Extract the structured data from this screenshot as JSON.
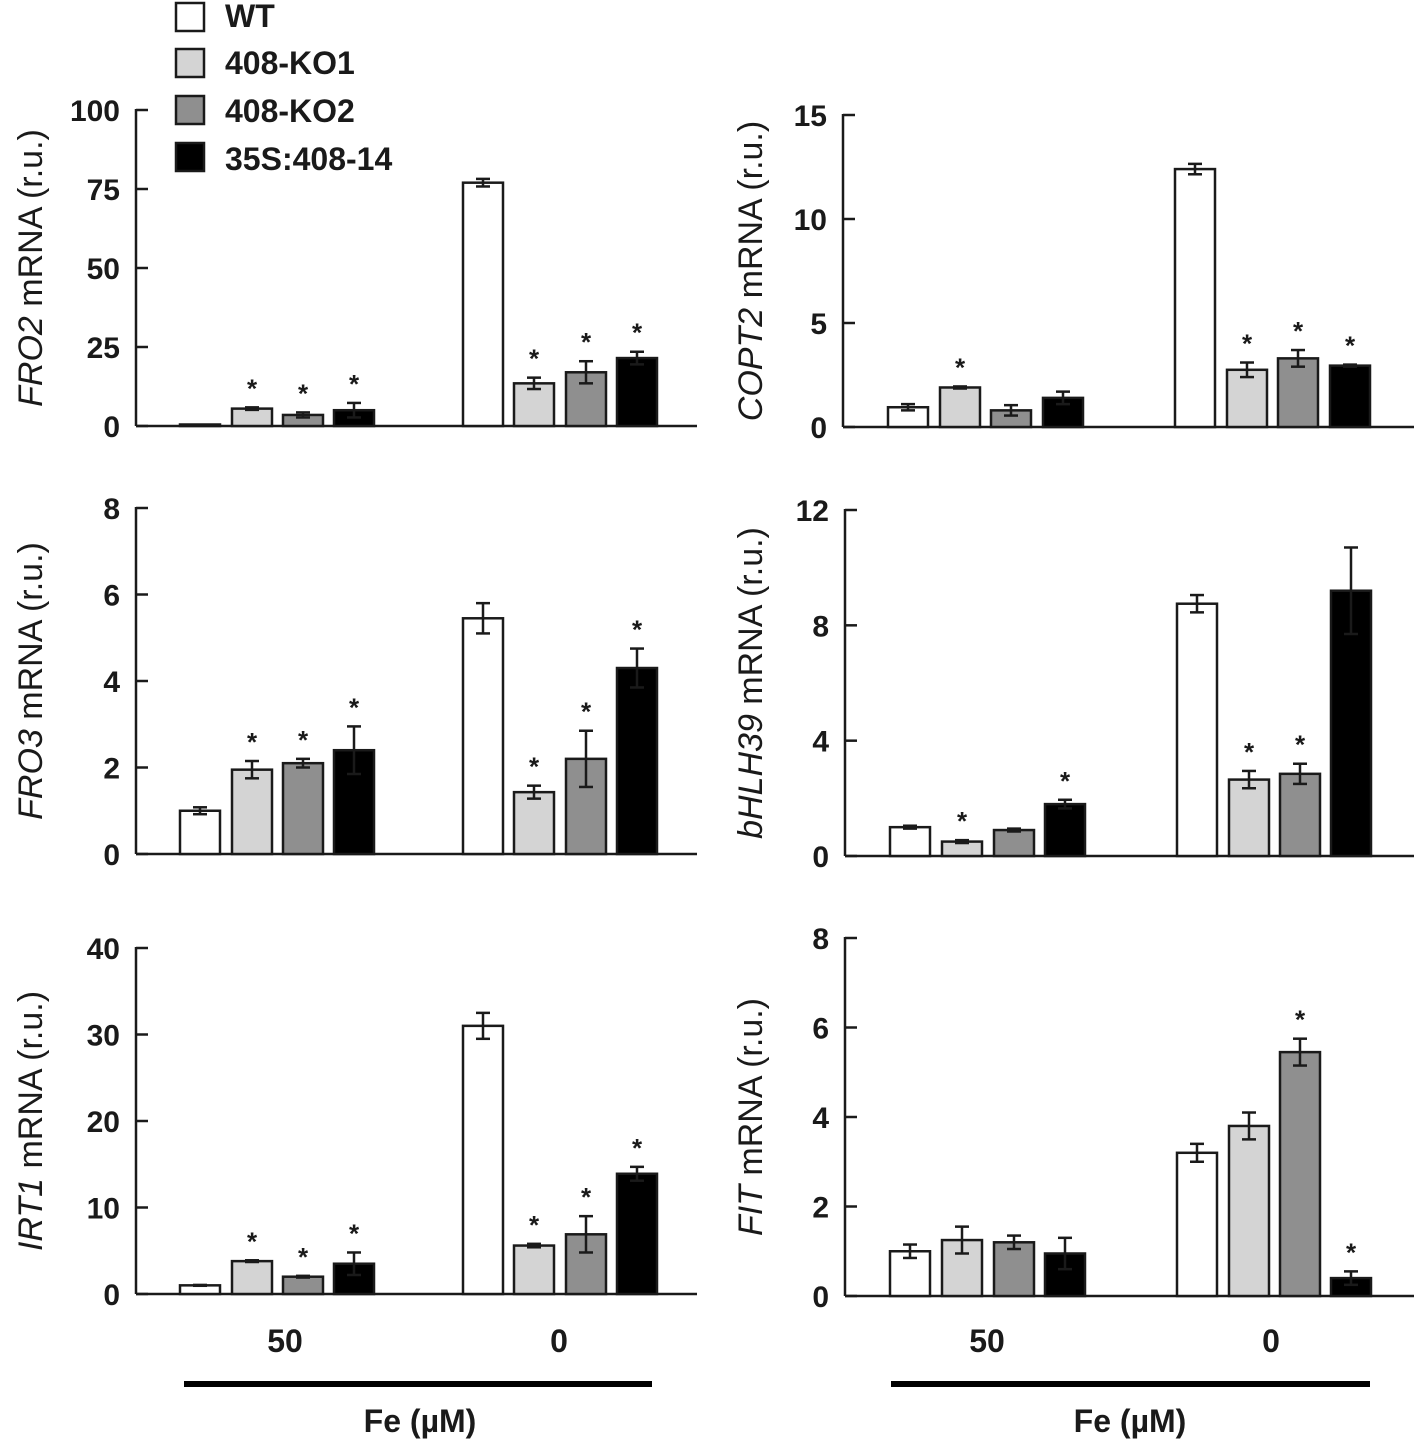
{
  "legend": [
    {
      "label": "WT",
      "color": "#ffffff"
    },
    {
      "label": "408-KO1",
      "color": "#d4d4d4"
    },
    {
      "label": "408-KO2",
      "color": "#8f8f8f"
    },
    {
      "label": "35S:408-14",
      "color": "#000000"
    }
  ],
  "x_axis": {
    "groups": [
      "50",
      "0"
    ],
    "label": "Fe (µM)"
  },
  "chart_data": [
    {
      "type": "bar",
      "gene": "FRO2",
      "ylabel_suffix": " mRNA (r.u.)",
      "categories": [
        "50",
        "0"
      ],
      "ylim": [
        0,
        100
      ],
      "yticks": [
        0,
        25,
        50,
        75,
        100
      ],
      "series": [
        {
          "name": "WT",
          "values": [
            0.3,
            77
          ],
          "errors": [
            0.1,
            1.2
          ],
          "significant": [
            false,
            false
          ]
        },
        {
          "name": "408-KO1",
          "values": [
            5.5,
            13.5
          ],
          "errors": [
            0.4,
            1.8
          ],
          "significant": [
            true,
            true
          ]
        },
        {
          "name": "408-KO2",
          "values": [
            3.5,
            17
          ],
          "errors": [
            0.8,
            3.5
          ],
          "significant": [
            true,
            true
          ]
        },
        {
          "name": "35S:408-14",
          "values": [
            5,
            21.5
          ],
          "errors": [
            2.3,
            2.0
          ],
          "significant": [
            true,
            true
          ]
        }
      ]
    },
    {
      "type": "bar",
      "gene": "COPT2",
      "ylabel_suffix": " mRNA (r.u.)",
      "categories": [
        "50",
        "0"
      ],
      "ylim": [
        0,
        15
      ],
      "yticks": [
        0,
        5,
        10,
        15
      ],
      "series": [
        {
          "name": "WT",
          "values": [
            0.95,
            12.4
          ],
          "errors": [
            0.15,
            0.25
          ],
          "significant": [
            false,
            false
          ]
        },
        {
          "name": "408-KO1",
          "values": [
            1.9,
            2.75
          ],
          "errors": [
            0.05,
            0.35
          ],
          "significant": [
            true,
            true
          ]
        },
        {
          "name": "408-KO2",
          "values": [
            0.8,
            3.3
          ],
          "errors": [
            0.25,
            0.4
          ],
          "significant": [
            false,
            true
          ]
        },
        {
          "name": "35S:408-14",
          "values": [
            1.4,
            2.95
          ],
          "errors": [
            0.3,
            0.05
          ],
          "significant": [
            false,
            true
          ]
        }
      ]
    },
    {
      "type": "bar",
      "gene": "FRO3",
      "ylabel_suffix": " mRNA (r.u.)",
      "categories": [
        "50",
        "0"
      ],
      "ylim": [
        0,
        8
      ],
      "yticks": [
        0,
        2,
        4,
        6,
        8
      ],
      "series": [
        {
          "name": "WT",
          "values": [
            1.0,
            5.45
          ],
          "errors": [
            0.08,
            0.35
          ],
          "significant": [
            false,
            false
          ]
        },
        {
          "name": "408-KO1",
          "values": [
            1.95,
            1.43
          ],
          "errors": [
            0.2,
            0.15
          ],
          "significant": [
            true,
            true
          ]
        },
        {
          "name": "408-KO2",
          "values": [
            2.1,
            2.2
          ],
          "errors": [
            0.1,
            0.65
          ],
          "significant": [
            true,
            true
          ]
        },
        {
          "name": "35S:408-14",
          "values": [
            2.4,
            4.3
          ],
          "errors": [
            0.55,
            0.45
          ],
          "significant": [
            true,
            true
          ]
        }
      ]
    },
    {
      "type": "bar",
      "gene": "bHLH39",
      "ylabel_suffix": " mRNA (r.u.)",
      "categories": [
        "50",
        "0"
      ],
      "ylim": [
        0,
        12
      ],
      "yticks": [
        0,
        4,
        8,
        12
      ],
      "series": [
        {
          "name": "WT",
          "values": [
            1.0,
            8.75
          ],
          "errors": [
            0.05,
            0.3
          ],
          "significant": [
            false,
            false
          ]
        },
        {
          "name": "408-KO1",
          "values": [
            0.5,
            2.65
          ],
          "errors": [
            0.05,
            0.3
          ],
          "significant": [
            true,
            true
          ]
        },
        {
          "name": "408-KO2",
          "values": [
            0.9,
            2.85
          ],
          "errors": [
            0.05,
            0.35
          ],
          "significant": [
            false,
            true
          ]
        },
        {
          "name": "35S:408-14",
          "values": [
            1.8,
            9.2
          ],
          "errors": [
            0.15,
            1.5
          ],
          "significant": [
            true,
            false
          ]
        }
      ]
    },
    {
      "type": "bar",
      "gene": "IRT1",
      "ylabel_suffix": " mRNA (r.u.)",
      "categories": [
        "50",
        "0"
      ],
      "ylim": [
        0,
        40
      ],
      "yticks": [
        0,
        10,
        20,
        30,
        40
      ],
      "series": [
        {
          "name": "WT",
          "values": [
            1.0,
            31
          ],
          "errors": [
            0.05,
            1.5
          ],
          "significant": [
            false,
            false
          ]
        },
        {
          "name": "408-KO1",
          "values": [
            3.8,
            5.6
          ],
          "errors": [
            0.1,
            0.2
          ],
          "significant": [
            true,
            true
          ]
        },
        {
          "name": "408-KO2",
          "values": [
            2.0,
            6.9
          ],
          "errors": [
            0.1,
            2.1
          ],
          "significant": [
            true,
            true
          ]
        },
        {
          "name": "35S:408-14",
          "values": [
            3.5,
            13.9
          ],
          "errors": [
            1.3,
            0.8
          ],
          "significant": [
            true,
            true
          ]
        }
      ]
    },
    {
      "type": "bar",
      "gene": "FIT",
      "ylabel_suffix": " mRNA (r.u.)",
      "categories": [
        "50",
        "0"
      ],
      "ylim": [
        0,
        8
      ],
      "yticks": [
        0,
        2,
        4,
        6,
        8
      ],
      "series": [
        {
          "name": "WT",
          "values": [
            1.0,
            3.2
          ],
          "errors": [
            0.15,
            0.2
          ],
          "significant": [
            false,
            false
          ]
        },
        {
          "name": "408-KO1",
          "values": [
            1.25,
            3.8
          ],
          "errors": [
            0.3,
            0.3
          ],
          "significant": [
            false,
            false
          ]
        },
        {
          "name": "408-KO2",
          "values": [
            1.2,
            5.45
          ],
          "errors": [
            0.15,
            0.3
          ],
          "significant": [
            false,
            true
          ]
        },
        {
          "name": "35S:408-14",
          "values": [
            0.95,
            0.4
          ],
          "errors": [
            0.35,
            0.15
          ],
          "significant": [
            false,
            true
          ]
        }
      ]
    }
  ]
}
